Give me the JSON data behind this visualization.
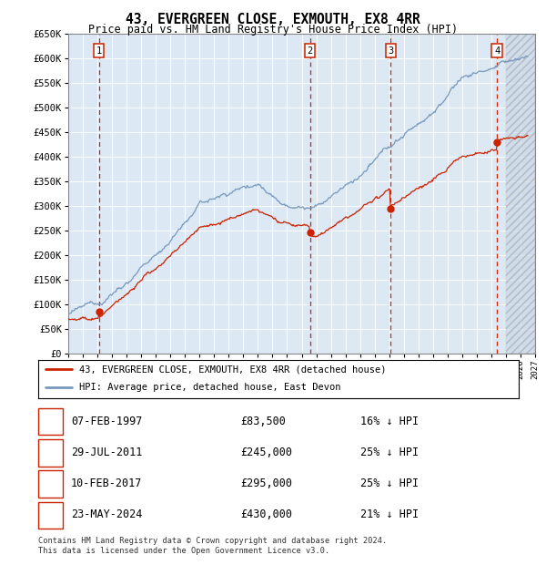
{
  "title": "43, EVERGREEN CLOSE, EXMOUTH, EX8 4RR",
  "subtitle": "Price paid vs. HM Land Registry's House Price Index (HPI)",
  "ylabel_ticks": [
    "£0",
    "£50K",
    "£100K",
    "£150K",
    "£200K",
    "£250K",
    "£300K",
    "£350K",
    "£400K",
    "£450K",
    "£500K",
    "£550K",
    "£600K",
    "£650K"
  ],
  "ytick_values": [
    0,
    50000,
    100000,
    150000,
    200000,
    250000,
    300000,
    350000,
    400000,
    450000,
    500000,
    550000,
    600000,
    650000
  ],
  "xmin": 1995.0,
  "xmax": 2027.0,
  "ymin": 0,
  "ymax": 650000,
  "sale_dates": [
    1997.1,
    2011.57,
    2017.11,
    2024.39
  ],
  "sale_prices": [
    83500,
    245000,
    295000,
    430000
  ],
  "sale_labels": [
    "1",
    "2",
    "3",
    "4"
  ],
  "hpi_line_color": "#7799bb",
  "price_line_color": "#cc2200",
  "sale_dot_color": "#cc2200",
  "sale_vline_color": "#cc2200",
  "background_color": "#ffffff",
  "plot_bg_color": "#dde8f5",
  "grid_color": "#ffffff",
  "hatch_region_start": 2025.0,
  "legend_line1": "43, EVERGREEN CLOSE, EXMOUTH, EX8 4RR (detached house)",
  "legend_line2": "HPI: Average price, detached house, East Devon",
  "transactions": [
    {
      "num": "1",
      "date": "07-FEB-1997",
      "price": "£83,500",
      "pct": "16% ↓ HPI"
    },
    {
      "num": "2",
      "date": "29-JUL-2011",
      "price": "£245,000",
      "pct": "25% ↓ HPI"
    },
    {
      "num": "3",
      "date": "10-FEB-2017",
      "price": "£295,000",
      "pct": "25% ↓ HPI"
    },
    {
      "num": "4",
      "date": "23-MAY-2024",
      "price": "£430,000",
      "pct": "21% ↓ HPI"
    }
  ],
  "footnote": "Contains HM Land Registry data © Crown copyright and database right 2024.\nThis data is licensed under the Open Government Licence v3.0."
}
